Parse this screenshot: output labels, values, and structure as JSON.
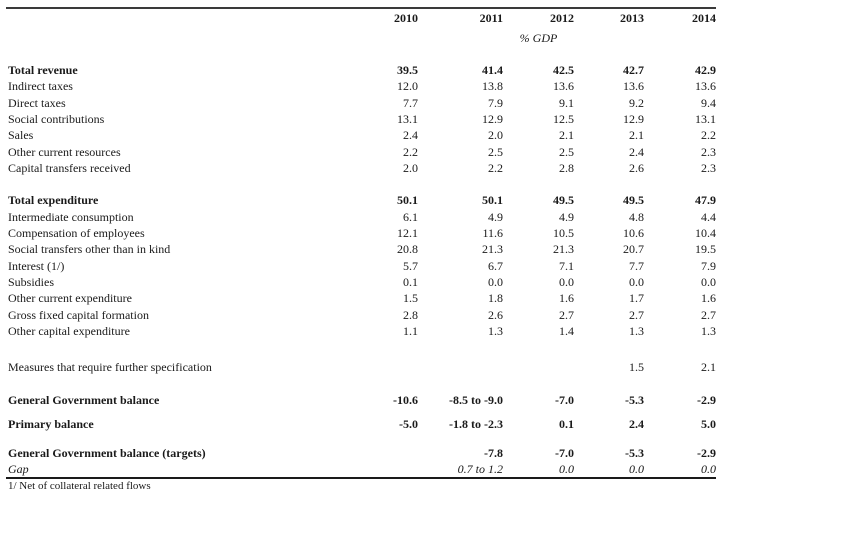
{
  "table": {
    "columns": [
      "2010",
      "2011",
      "2012",
      "2013",
      "2014"
    ],
    "unit_label": "% GDP",
    "rows": [
      {
        "label": "Total revenue",
        "style": "bold",
        "values": [
          "39.5",
          "41.4",
          "42.5",
          "42.7",
          "42.9"
        ]
      },
      {
        "label": "Indirect taxes",
        "style": "regular",
        "values": [
          "12.0",
          "13.8",
          "13.6",
          "13.6",
          "13.6"
        ]
      },
      {
        "label": "Direct taxes",
        "style": "regular",
        "values": [
          "7.7",
          "7.9",
          "9.1",
          "9.2",
          "9.4"
        ]
      },
      {
        "label": "Social contributions",
        "style": "regular",
        "values": [
          "13.1",
          "12.9",
          "12.5",
          "12.9",
          "13.1"
        ]
      },
      {
        "label": "Sales",
        "style": "regular",
        "values": [
          "2.4",
          "2.0",
          "2.1",
          "2.1",
          "2.2"
        ]
      },
      {
        "label": "Other current resources",
        "style": "regular",
        "values": [
          "2.2",
          "2.5",
          "2.5",
          "2.4",
          "2.3"
        ]
      },
      {
        "label": "Capital transfers received",
        "style": "regular",
        "values": [
          "2.0",
          "2.2",
          "2.8",
          "2.6",
          "2.3"
        ]
      },
      {
        "type": "spacer",
        "height": 16
      },
      {
        "label": "Total expenditure",
        "style": "bold",
        "values": [
          "50.1",
          "50.1",
          "49.5",
          "49.5",
          "47.9"
        ]
      },
      {
        "label": "Intermediate consumption",
        "style": "regular",
        "values": [
          "6.1",
          "4.9",
          "4.9",
          "4.8",
          "4.4"
        ]
      },
      {
        "label": "Compensation of employees",
        "style": "regular",
        "values": [
          "12.1",
          "11.6",
          "10.5",
          "10.6",
          "10.4"
        ]
      },
      {
        "label": "Social transfers other than in kind",
        "style": "regular",
        "values": [
          "20.8",
          "21.3",
          "21.3",
          "20.7",
          "19.5"
        ]
      },
      {
        "label": "Interest (1/)",
        "style": "regular",
        "values": [
          "5.7",
          "6.7",
          "7.1",
          "7.7",
          "7.9"
        ]
      },
      {
        "label": "Subsidies",
        "style": "regular",
        "values": [
          "0.1",
          "0.0",
          "0.0",
          "0.0",
          "0.0"
        ]
      },
      {
        "label": "Other current expenditure",
        "style": "regular",
        "values": [
          "1.5",
          "1.8",
          "1.6",
          "1.7",
          "1.6"
        ]
      },
      {
        "label": "Gross fixed capital formation",
        "style": "regular",
        "values": [
          "2.8",
          "2.6",
          "2.7",
          "2.7",
          "2.7"
        ]
      },
      {
        "label": "Other capital expenditure",
        "style": "regular",
        "values": [
          "1.1",
          "1.3",
          "1.4",
          "1.3",
          "1.3"
        ]
      },
      {
        "type": "spacer",
        "height": 20
      },
      {
        "label": "Measures that require further specification",
        "style": "regular",
        "values": [
          "",
          "",
          "",
          "1.5",
          "2.1"
        ]
      },
      {
        "type": "spacer",
        "height": 16
      },
      {
        "label": "General Government balance",
        "style": "bold",
        "values": [
          "-10.6",
          "-8.5 to -9.0",
          "-7.0",
          "-5.3",
          "-2.9"
        ]
      },
      {
        "type": "spacer",
        "height": 8
      },
      {
        "label": "Primary balance",
        "style": "bold",
        "values": [
          "-5.0",
          "-1.8 to -2.3",
          "0.1",
          "2.4",
          "5.0"
        ]
      },
      {
        "type": "spacer",
        "height": 13
      },
      {
        "label": "General Government balance (targets)",
        "style": "bold",
        "values": [
          "",
          "-7.8",
          "-7.0",
          "-5.3",
          "-2.9"
        ]
      },
      {
        "label": "Gap",
        "style": "italic",
        "values": [
          "",
          "0.7 to 1.2",
          "0.0",
          "0.0",
          "0.0"
        ]
      }
    ],
    "footnote": "1/ Net of collateral related flows"
  },
  "colors": {
    "background": "#ffffff",
    "text": "#1a1a1a",
    "rule_top": "#3a3a3a",
    "rule_bottom": "#1a1a1a"
  }
}
